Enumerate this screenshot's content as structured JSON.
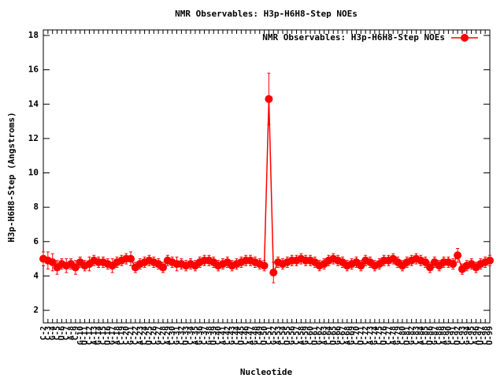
{
  "chart_data": {
    "type": "line",
    "title": "NMR Observables: H3p-H6H8-Step NOEs",
    "x_label": "Nucleotide",
    "y_label": "H3p-H6H8-Step (Angstroms)",
    "categories": [
      "C-2",
      "C-3",
      "G-4",
      "C-5",
      "U-6",
      "C-7",
      "A-8",
      "C-9",
      "G-10",
      "U-11",
      "C-12",
      "A-13",
      "G-14",
      "C-15",
      "U-16",
      "G-17",
      "A-18",
      "C-19",
      "C-20",
      "G-21",
      "C-22",
      "A-23",
      "C-24",
      "U-25",
      "C-26",
      "G-27",
      "C-28",
      "A-29",
      "C-30",
      "G-31",
      "C-32",
      "U-33",
      "C-34",
      "A-35",
      "G-36",
      "C-37",
      "G-38",
      "U-39",
      "C-40",
      "A-41",
      "C-42",
      "G-43",
      "C-44",
      "U-45",
      "C-46",
      "A-47",
      "G-48",
      "C-49",
      "U-50",
      "C-51",
      "G-52",
      "A-53",
      "C-54",
      "U-55",
      "G-56",
      "C-57",
      "A-58",
      "G-59",
      "C-60",
      "U-61",
      "G-62",
      "A-63",
      "C-64",
      "U-65",
      "G-66",
      "C-67",
      "A-68",
      "G-69",
      "C-70",
      "U-71",
      "C-72",
      "A-73",
      "G-74",
      "C-75",
      "U-76",
      "C-77",
      "A-78",
      "G-79",
      "C-80",
      "U-81",
      "G-82",
      "C-83",
      "A-84",
      "C-85",
      "U-86",
      "G-87",
      "C-88",
      "A-89",
      "G-90",
      "C-91",
      "U-92",
      "C-93",
      "G-94",
      "C-95",
      "A-96",
      "U-97",
      "C-98",
      "U-99"
    ],
    "series": [
      {
        "name": "NMR Observables: H3p-H6H8-Step NOEs",
        "color": "#ff0000",
        "values": [
          5.0,
          4.9,
          4.8,
          4.5,
          4.7,
          4.6,
          4.7,
          4.5,
          4.8,
          4.6,
          4.7,
          4.9,
          4.8,
          4.8,
          4.7,
          4.6,
          4.8,
          4.9,
          5.0,
          5.0,
          4.5,
          4.7,
          4.8,
          4.9,
          4.8,
          4.7,
          4.5,
          4.9,
          4.8,
          4.7,
          4.7,
          4.6,
          4.7,
          4.6,
          4.8,
          4.9,
          4.9,
          4.8,
          4.6,
          4.7,
          4.8,
          4.6,
          4.7,
          4.8,
          4.9,
          4.9,
          4.8,
          4.7,
          4.6,
          14.3,
          4.2,
          4.8,
          4.7,
          4.8,
          4.9,
          4.9,
          5.0,
          4.9,
          4.9,
          4.8,
          4.6,
          4.7,
          4.9,
          5.0,
          4.9,
          4.8,
          4.6,
          4.7,
          4.8,
          4.6,
          4.9,
          4.8,
          4.6,
          4.7,
          4.9,
          4.9,
          5.0,
          4.8,
          4.6,
          4.8,
          4.9,
          5.0,
          4.9,
          4.8,
          4.5,
          4.8,
          4.6,
          4.8,
          4.8,
          4.7,
          5.2,
          4.4,
          4.6,
          4.7,
          4.5,
          4.7,
          4.8,
          4.9
        ],
        "errors": [
          0.4,
          0.5,
          0.5,
          0.4,
          0.3,
          0.4,
          0.3,
          0.4,
          0.3,
          0.3,
          0.4,
          0.3,
          0.3,
          0.3,
          0.3,
          0.4,
          0.3,
          0.3,
          0.3,
          0.4,
          0.3,
          0.3,
          0.3,
          0.3,
          0.3,
          0.3,
          0.3,
          0.3,
          0.3,
          0.4,
          0.3,
          0.3,
          0.3,
          0.3,
          0.3,
          0.3,
          0.3,
          0.3,
          0.3,
          0.3,
          0.3,
          0.3,
          0.3,
          0.3,
          0.3,
          0.3,
          0.3,
          0.3,
          0.3,
          1.5,
          0.6,
          0.3,
          0.3,
          0.3,
          0.3,
          0.3,
          0.3,
          0.3,
          0.3,
          0.3,
          0.3,
          0.3,
          0.3,
          0.3,
          0.3,
          0.3,
          0.3,
          0.3,
          0.3,
          0.3,
          0.3,
          0.3,
          0.3,
          0.3,
          0.3,
          0.3,
          0.3,
          0.3,
          0.3,
          0.3,
          0.3,
          0.3,
          0.3,
          0.3,
          0.3,
          0.3,
          0.3,
          0.3,
          0.3,
          0.3,
          0.4,
          0.3,
          0.3,
          0.3,
          0.3,
          0.3,
          0.3,
          0.3
        ]
      }
    ],
    "ylim": [
      1.27,
      18.32
    ],
    "yticks": [
      2,
      4,
      6,
      8,
      10,
      12,
      14,
      16,
      18
    ],
    "legend": "top-right"
  }
}
